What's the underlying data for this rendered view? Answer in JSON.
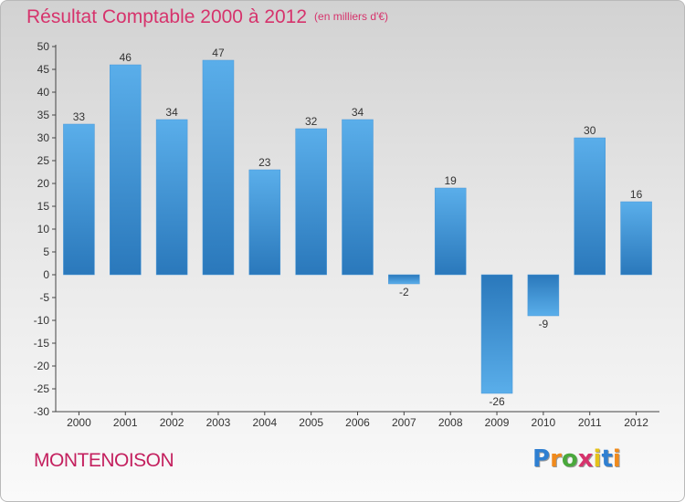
{
  "header": {
    "title": "Résultat Comptable 2000 à 2012",
    "subtitle": "(en milliers d'€)"
  },
  "footer": {
    "place": "MONTENOISON",
    "logo": [
      {
        "char": "P",
        "color": "#2f7fd1"
      },
      {
        "char": "r",
        "color": "#f08a1c"
      },
      {
        "char": "o",
        "color": "#4aa83c"
      },
      {
        "char": "x",
        "color": "#d6336c"
      },
      {
        "char": "i",
        "color": "#e5c21a"
      },
      {
        "char": "t",
        "color": "#2f7fd1"
      },
      {
        "char": "i",
        "color": "#f08a1c"
      }
    ]
  },
  "colors": {
    "bar_light": "#5aaeea",
    "bar_dark": "#2a78bb",
    "axis": "#444444",
    "text": "#333333"
  },
  "chart_data": {
    "type": "bar",
    "title": "Résultat Comptable 2000 à 2012",
    "subtitle": "(en milliers d'€)",
    "categories": [
      "2000",
      "2001",
      "2002",
      "2003",
      "2004",
      "2005",
      "2006",
      "2007",
      "2008",
      "2009",
      "2010",
      "2011",
      "2012"
    ],
    "values": [
      33,
      46,
      34,
      47,
      23,
      32,
      34,
      -2,
      19,
      -26,
      -9,
      30,
      16
    ],
    "ylim": [
      -30,
      50
    ],
    "yticks": [
      -30,
      -25,
      -20,
      -15,
      -10,
      -5,
      0,
      5,
      10,
      15,
      20,
      25,
      30,
      35,
      40,
      45,
      50
    ],
    "xlabel": "",
    "ylabel": "",
    "grid": false
  }
}
